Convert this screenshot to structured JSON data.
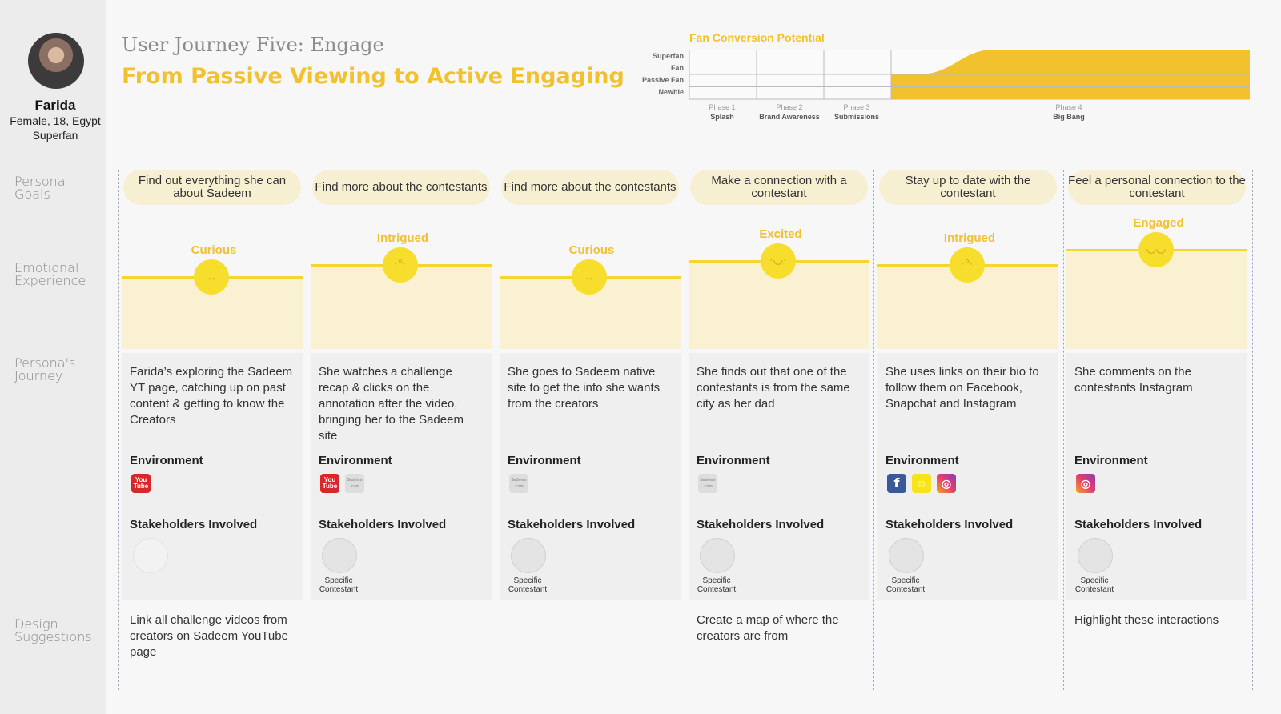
{
  "persona": {
    "name": "Farida",
    "line1": "Female, 18, Egypt",
    "line2": "Superfan"
  },
  "header": {
    "subtitle": "User Journey Five: Engage",
    "title": "From Passive Viewing to Active Engaging"
  },
  "fan_chart": {
    "title": "Fan Conversion Potential",
    "stages": [
      "Superfan",
      "Fan",
      "Passive Fan",
      "Newbie"
    ],
    "phases": [
      {
        "num": "Phase 1",
        "name": "Splash"
      },
      {
        "num": "Phase 2",
        "name": "Brand Awareness"
      },
      {
        "num": "Phase 3",
        "name": "Submissions"
      },
      {
        "num": "Phase 4",
        "name": "Big Bang"
      }
    ],
    "colors": {
      "fill": "#f2c12e",
      "grid": "#bbbbbb"
    }
  },
  "row_labels": {
    "goals": "Persona Goals",
    "emotion": "Emotional Experience",
    "journey": "Persona's Journey",
    "design": "Design Suggestions"
  },
  "section_labels": {
    "environment": "Environment",
    "stakeholders": "Stakeholders Involved"
  },
  "columns": [
    {
      "goal": "Find out everything she can about Sadeem",
      "emotion": "Curious",
      "level": 0.3,
      "journey": "Farida’s exploring the Sadeem YT page, catching up on past content & getting to know the Creators",
      "env": [
        "youtube-icon"
      ],
      "stake": "",
      "design": "Link all challenge videos from creators on Sadeem YouTube page"
    },
    {
      "goal": "Find more about the contestants",
      "emotion": "Intrigued",
      "level": 0.6,
      "journey": "She watches a challenge recap & clicks on the annotation after the video, bringing her to the Sadeem site",
      "env": [
        "youtube-icon",
        "sadeem-site-icon"
      ],
      "stake": "Specific Contestant",
      "design": ""
    },
    {
      "goal": "Find more about the contestants",
      "emotion": "Curious",
      "level": 0.3,
      "journey": "She goes to Sadeem native site to get the info she wants from the creators",
      "env": [
        "sadeem-site-icon"
      ],
      "stake": "Specific Contestant",
      "design": ""
    },
    {
      "goal": "Make a connection with a contestant",
      "emotion": "Excited",
      "level": 0.7,
      "journey": "She finds out that one of the contestants is from the same city as her dad",
      "env": [
        "sadeem-site-icon"
      ],
      "stake": "Specific Contestant",
      "design": "Create a map of where the creators are from"
    },
    {
      "goal": "Stay up to date with the contestant",
      "emotion": "Intrigued",
      "level": 0.6,
      "journey": "She uses links on their bio to follow them on Facebook, Snapchat and Instagram",
      "env": [
        "facebook-icon",
        "snapchat-icon",
        "instagram-icon"
      ],
      "stake": "Specific Contestant",
      "design": ""
    },
    {
      "goal": "Feel a personal connection to the contestant",
      "emotion": "Engaged",
      "level": 1.0,
      "journey": "She comments on the contestants Instagram",
      "env": [
        "instagram-icon"
      ],
      "stake": "Specific Contestant",
      "design": "Highlight these interactions"
    }
  ]
}
